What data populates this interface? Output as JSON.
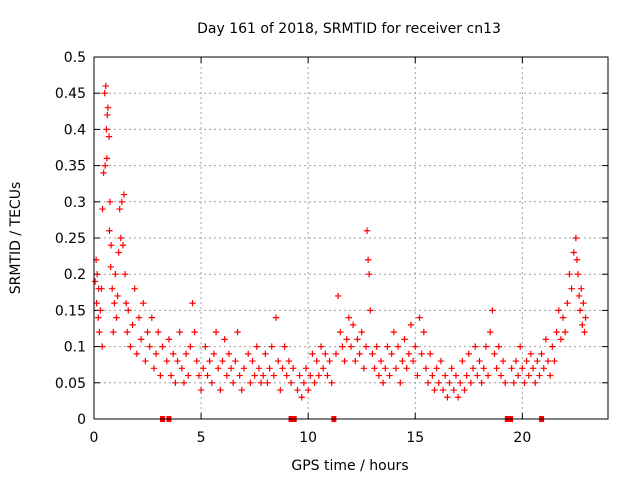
{
  "chart_data": {
    "type": "scatter",
    "title": "Day 161 of 2018, SRMTID for receiver cn13",
    "xlabel": "GPS time / hours",
    "ylabel": "SRMTID / TECUs",
    "xlim": [
      0,
      24
    ],
    "ylim": [
      0,
      0.5
    ],
    "xticks": [
      0,
      5,
      10,
      15,
      20
    ],
    "yticks": [
      0,
      0.05,
      0.1,
      0.15,
      0.2,
      0.25,
      0.3,
      0.35,
      0.4,
      0.45,
      0.5
    ],
    "grid": true,
    "marker": "+",
    "series_color": "#ff0000",
    "series": [
      {
        "name": "SRMTID",
        "points": [
          [
            0.05,
            0.19
          ],
          [
            0.1,
            0.22
          ],
          [
            0.12,
            0.16
          ],
          [
            0.15,
            0.2
          ],
          [
            0.2,
            0.14
          ],
          [
            0.22,
            0.18
          ],
          [
            0.25,
            0.12
          ],
          [
            0.3,
            0.15
          ],
          [
            0.35,
            0.18
          ],
          [
            0.38,
            0.1
          ],
          [
            0.4,
            0.29
          ],
          [
            0.45,
            0.34
          ],
          [
            0.5,
            0.45
          ],
          [
            0.52,
            0.35
          ],
          [
            0.55,
            0.46
          ],
          [
            0.58,
            0.4
          ],
          [
            0.6,
            0.36
          ],
          [
            0.62,
            0.42
          ],
          [
            0.65,
            0.43
          ],
          [
            0.7,
            0.39
          ],
          [
            0.72,
            0.26
          ],
          [
            0.75,
            0.3
          ],
          [
            0.78,
            0.21
          ],
          [
            0.8,
            0.24
          ],
          [
            0.85,
            0.18
          ],
          [
            0.9,
            0.12
          ],
          [
            0.95,
            0.16
          ],
          [
            1.0,
            0.2
          ],
          [
            1.05,
            0.14
          ],
          [
            1.1,
            0.17
          ],
          [
            1.15,
            0.23
          ],
          [
            1.2,
            0.29
          ],
          [
            1.25,
            0.25
          ],
          [
            1.3,
            0.3
          ],
          [
            1.35,
            0.24
          ],
          [
            1.4,
            0.31
          ],
          [
            1.45,
            0.2
          ],
          [
            1.5,
            0.16
          ],
          [
            1.55,
            0.12
          ],
          [
            1.6,
            0.15
          ],
          [
            1.7,
            0.1
          ],
          [
            1.8,
            0.13
          ],
          [
            1.9,
            0.18
          ],
          [
            2.0,
            0.09
          ],
          [
            2.1,
            0.14
          ],
          [
            2.2,
            0.11
          ],
          [
            2.3,
            0.16
          ],
          [
            2.4,
            0.08
          ],
          [
            2.5,
            0.12
          ],
          [
            2.6,
            0.1
          ],
          [
            2.7,
            0.14
          ],
          [
            2.8,
            0.07
          ],
          [
            2.9,
            0.09
          ],
          [
            3.0,
            0.12
          ],
          [
            3.1,
            0.06
          ],
          [
            3.2,
            0.1
          ],
          [
            3.4,
            0.08
          ],
          [
            3.5,
            0.11
          ],
          [
            3.6,
            0.06
          ],
          [
            3.7,
            0.09
          ],
          [
            3.8,
            0.05
          ],
          [
            3.9,
            0.08
          ],
          [
            4.0,
            0.12
          ],
          [
            4.1,
            0.07
          ],
          [
            4.2,
            0.05
          ],
          [
            4.3,
            0.09
          ],
          [
            4.4,
            0.06
          ],
          [
            4.5,
            0.1
          ],
          [
            4.6,
            0.16
          ],
          [
            4.7,
            0.12
          ],
          [
            4.8,
            0.08
          ],
          [
            4.9,
            0.06
          ],
          [
            5.0,
            0.04
          ],
          [
            5.1,
            0.07
          ],
          [
            5.2,
            0.1
          ],
          [
            5.3,
            0.06
          ],
          [
            5.4,
            0.08
          ],
          [
            5.5,
            0.05
          ],
          [
            5.6,
            0.09
          ],
          [
            5.7,
            0.12
          ],
          [
            5.8,
            0.07
          ],
          [
            5.9,
            0.04
          ],
          [
            6.0,
            0.08
          ],
          [
            6.1,
            0.11
          ],
          [
            6.2,
            0.06
          ],
          [
            6.3,
            0.09
          ],
          [
            6.4,
            0.07
          ],
          [
            6.5,
            0.05
          ],
          [
            6.6,
            0.08
          ],
          [
            6.7,
            0.12
          ],
          [
            6.8,
            0.06
          ],
          [
            6.9,
            0.04
          ],
          [
            7.0,
            0.07
          ],
          [
            7.2,
            0.09
          ],
          [
            7.3,
            0.05
          ],
          [
            7.4,
            0.08
          ],
          [
            7.5,
            0.06
          ],
          [
            7.6,
            0.1
          ],
          [
            7.7,
            0.07
          ],
          [
            7.8,
            0.05
          ],
          [
            7.9,
            0.06
          ],
          [
            8.0,
            0.09
          ],
          [
            8.1,
            0.05
          ],
          [
            8.2,
            0.07
          ],
          [
            8.3,
            0.1
          ],
          [
            8.4,
            0.06
          ],
          [
            8.5,
            0.14
          ],
          [
            8.6,
            0.08
          ],
          [
            8.7,
            0.04
          ],
          [
            8.8,
            0.07
          ],
          [
            8.9,
            0.1
          ],
          [
            9.0,
            0.06
          ],
          [
            9.1,
            0.08
          ],
          [
            9.2,
            0.05
          ],
          [
            9.3,
            0.07
          ],
          [
            9.5,
            0.04
          ],
          [
            9.6,
            0.06
          ],
          [
            9.7,
            0.03
          ],
          [
            9.8,
            0.05
          ],
          [
            9.9,
            0.07
          ],
          [
            10.0,
            0.04
          ],
          [
            10.1,
            0.06
          ],
          [
            10.2,
            0.09
          ],
          [
            10.3,
            0.05
          ],
          [
            10.4,
            0.08
          ],
          [
            10.5,
            0.06
          ],
          [
            10.6,
            0.1
          ],
          [
            10.7,
            0.07
          ],
          [
            10.8,
            0.09
          ],
          [
            10.9,
            0.06
          ],
          [
            11.0,
            0.08
          ],
          [
            11.1,
            0.05
          ],
          [
            11.3,
            0.09
          ],
          [
            11.4,
            0.17
          ],
          [
            11.5,
            0.12
          ],
          [
            11.6,
            0.1
          ],
          [
            11.7,
            0.08
          ],
          [
            11.8,
            0.11
          ],
          [
            11.9,
            0.14
          ],
          [
            12.0,
            0.1
          ],
          [
            12.1,
            0.13
          ],
          [
            12.2,
            0.08
          ],
          [
            12.3,
            0.11
          ],
          [
            12.4,
            0.09
          ],
          [
            12.5,
            0.12
          ],
          [
            12.6,
            0.07
          ],
          [
            12.7,
            0.1
          ],
          [
            12.75,
            0.26
          ],
          [
            12.8,
            0.22
          ],
          [
            12.85,
            0.2
          ],
          [
            12.9,
            0.15
          ],
          [
            13.0,
            0.09
          ],
          [
            13.1,
            0.07
          ],
          [
            13.2,
            0.1
          ],
          [
            13.3,
            0.06
          ],
          [
            13.4,
            0.08
          ],
          [
            13.5,
            0.05
          ],
          [
            13.6,
            0.07
          ],
          [
            13.7,
            0.1
          ],
          [
            13.8,
            0.06
          ],
          [
            13.9,
            0.09
          ],
          [
            14.0,
            0.12
          ],
          [
            14.1,
            0.07
          ],
          [
            14.2,
            0.1
          ],
          [
            14.3,
            0.05
          ],
          [
            14.4,
            0.08
          ],
          [
            14.5,
            0.11
          ],
          [
            14.6,
            0.07
          ],
          [
            14.7,
            0.09
          ],
          [
            14.8,
            0.13
          ],
          [
            14.9,
            0.08
          ],
          [
            15.0,
            0.1
          ],
          [
            15.1,
            0.06
          ],
          [
            15.2,
            0.14
          ],
          [
            15.3,
            0.09
          ],
          [
            15.4,
            0.12
          ],
          [
            15.5,
            0.07
          ],
          [
            15.6,
            0.05
          ],
          [
            15.7,
            0.09
          ],
          [
            15.8,
            0.06
          ],
          [
            15.9,
            0.04
          ],
          [
            16.0,
            0.07
          ],
          [
            16.1,
            0.05
          ],
          [
            16.2,
            0.08
          ],
          [
            16.3,
            0.04
          ],
          [
            16.4,
            0.06
          ],
          [
            16.5,
            0.03
          ],
          [
            16.6,
            0.05
          ],
          [
            16.7,
            0.07
          ],
          [
            16.8,
            0.04
          ],
          [
            16.9,
            0.06
          ],
          [
            17.0,
            0.03
          ],
          [
            17.1,
            0.05
          ],
          [
            17.2,
            0.08
          ],
          [
            17.3,
            0.04
          ],
          [
            17.4,
            0.06
          ],
          [
            17.5,
            0.09
          ],
          [
            17.6,
            0.05
          ],
          [
            17.7,
            0.07
          ],
          [
            17.8,
            0.1
          ],
          [
            17.9,
            0.06
          ],
          [
            18.0,
            0.08
          ],
          [
            18.1,
            0.05
          ],
          [
            18.2,
            0.07
          ],
          [
            18.3,
            0.1
          ],
          [
            18.4,
            0.06
          ],
          [
            18.5,
            0.12
          ],
          [
            18.6,
            0.15
          ],
          [
            18.7,
            0.09
          ],
          [
            18.8,
            0.07
          ],
          [
            18.9,
            0.1
          ],
          [
            19.0,
            0.06
          ],
          [
            19.1,
            0.08
          ],
          [
            19.2,
            0.05
          ],
          [
            19.5,
            0.07
          ],
          [
            19.6,
            0.05
          ],
          [
            19.7,
            0.08
          ],
          [
            19.8,
            0.06
          ],
          [
            19.9,
            0.1
          ],
          [
            20.0,
            0.07
          ],
          [
            20.1,
            0.05
          ],
          [
            20.2,
            0.08
          ],
          [
            20.3,
            0.06
          ],
          [
            20.4,
            0.09
          ],
          [
            20.5,
            0.07
          ],
          [
            20.6,
            0.05
          ],
          [
            20.7,
            0.08
          ],
          [
            20.8,
            0.06
          ],
          [
            20.9,
            0.09
          ],
          [
            21.0,
            0.07
          ],
          [
            21.1,
            0.11
          ],
          [
            21.2,
            0.08
          ],
          [
            21.3,
            0.06
          ],
          [
            21.4,
            0.1
          ],
          [
            21.5,
            0.08
          ],
          [
            21.6,
            0.12
          ],
          [
            21.7,
            0.15
          ],
          [
            21.8,
            0.11
          ],
          [
            21.9,
            0.14
          ],
          [
            22.0,
            0.12
          ],
          [
            22.1,
            0.16
          ],
          [
            22.2,
            0.2
          ],
          [
            22.3,
            0.18
          ],
          [
            22.4,
            0.23
          ],
          [
            22.5,
            0.25
          ],
          [
            22.55,
            0.22
          ],
          [
            22.6,
            0.2
          ],
          [
            22.65,
            0.17
          ],
          [
            22.7,
            0.15
          ],
          [
            22.75,
            0.18
          ],
          [
            22.8,
            0.13
          ],
          [
            22.85,
            0.16
          ],
          [
            22.9,
            0.12
          ],
          [
            22.95,
            0.14
          ]
        ]
      }
    ],
    "gap_markers_x": [
      3.2,
      3.5,
      9.2,
      9.35,
      11.2,
      19.3,
      19.45,
      20.9
    ]
  }
}
